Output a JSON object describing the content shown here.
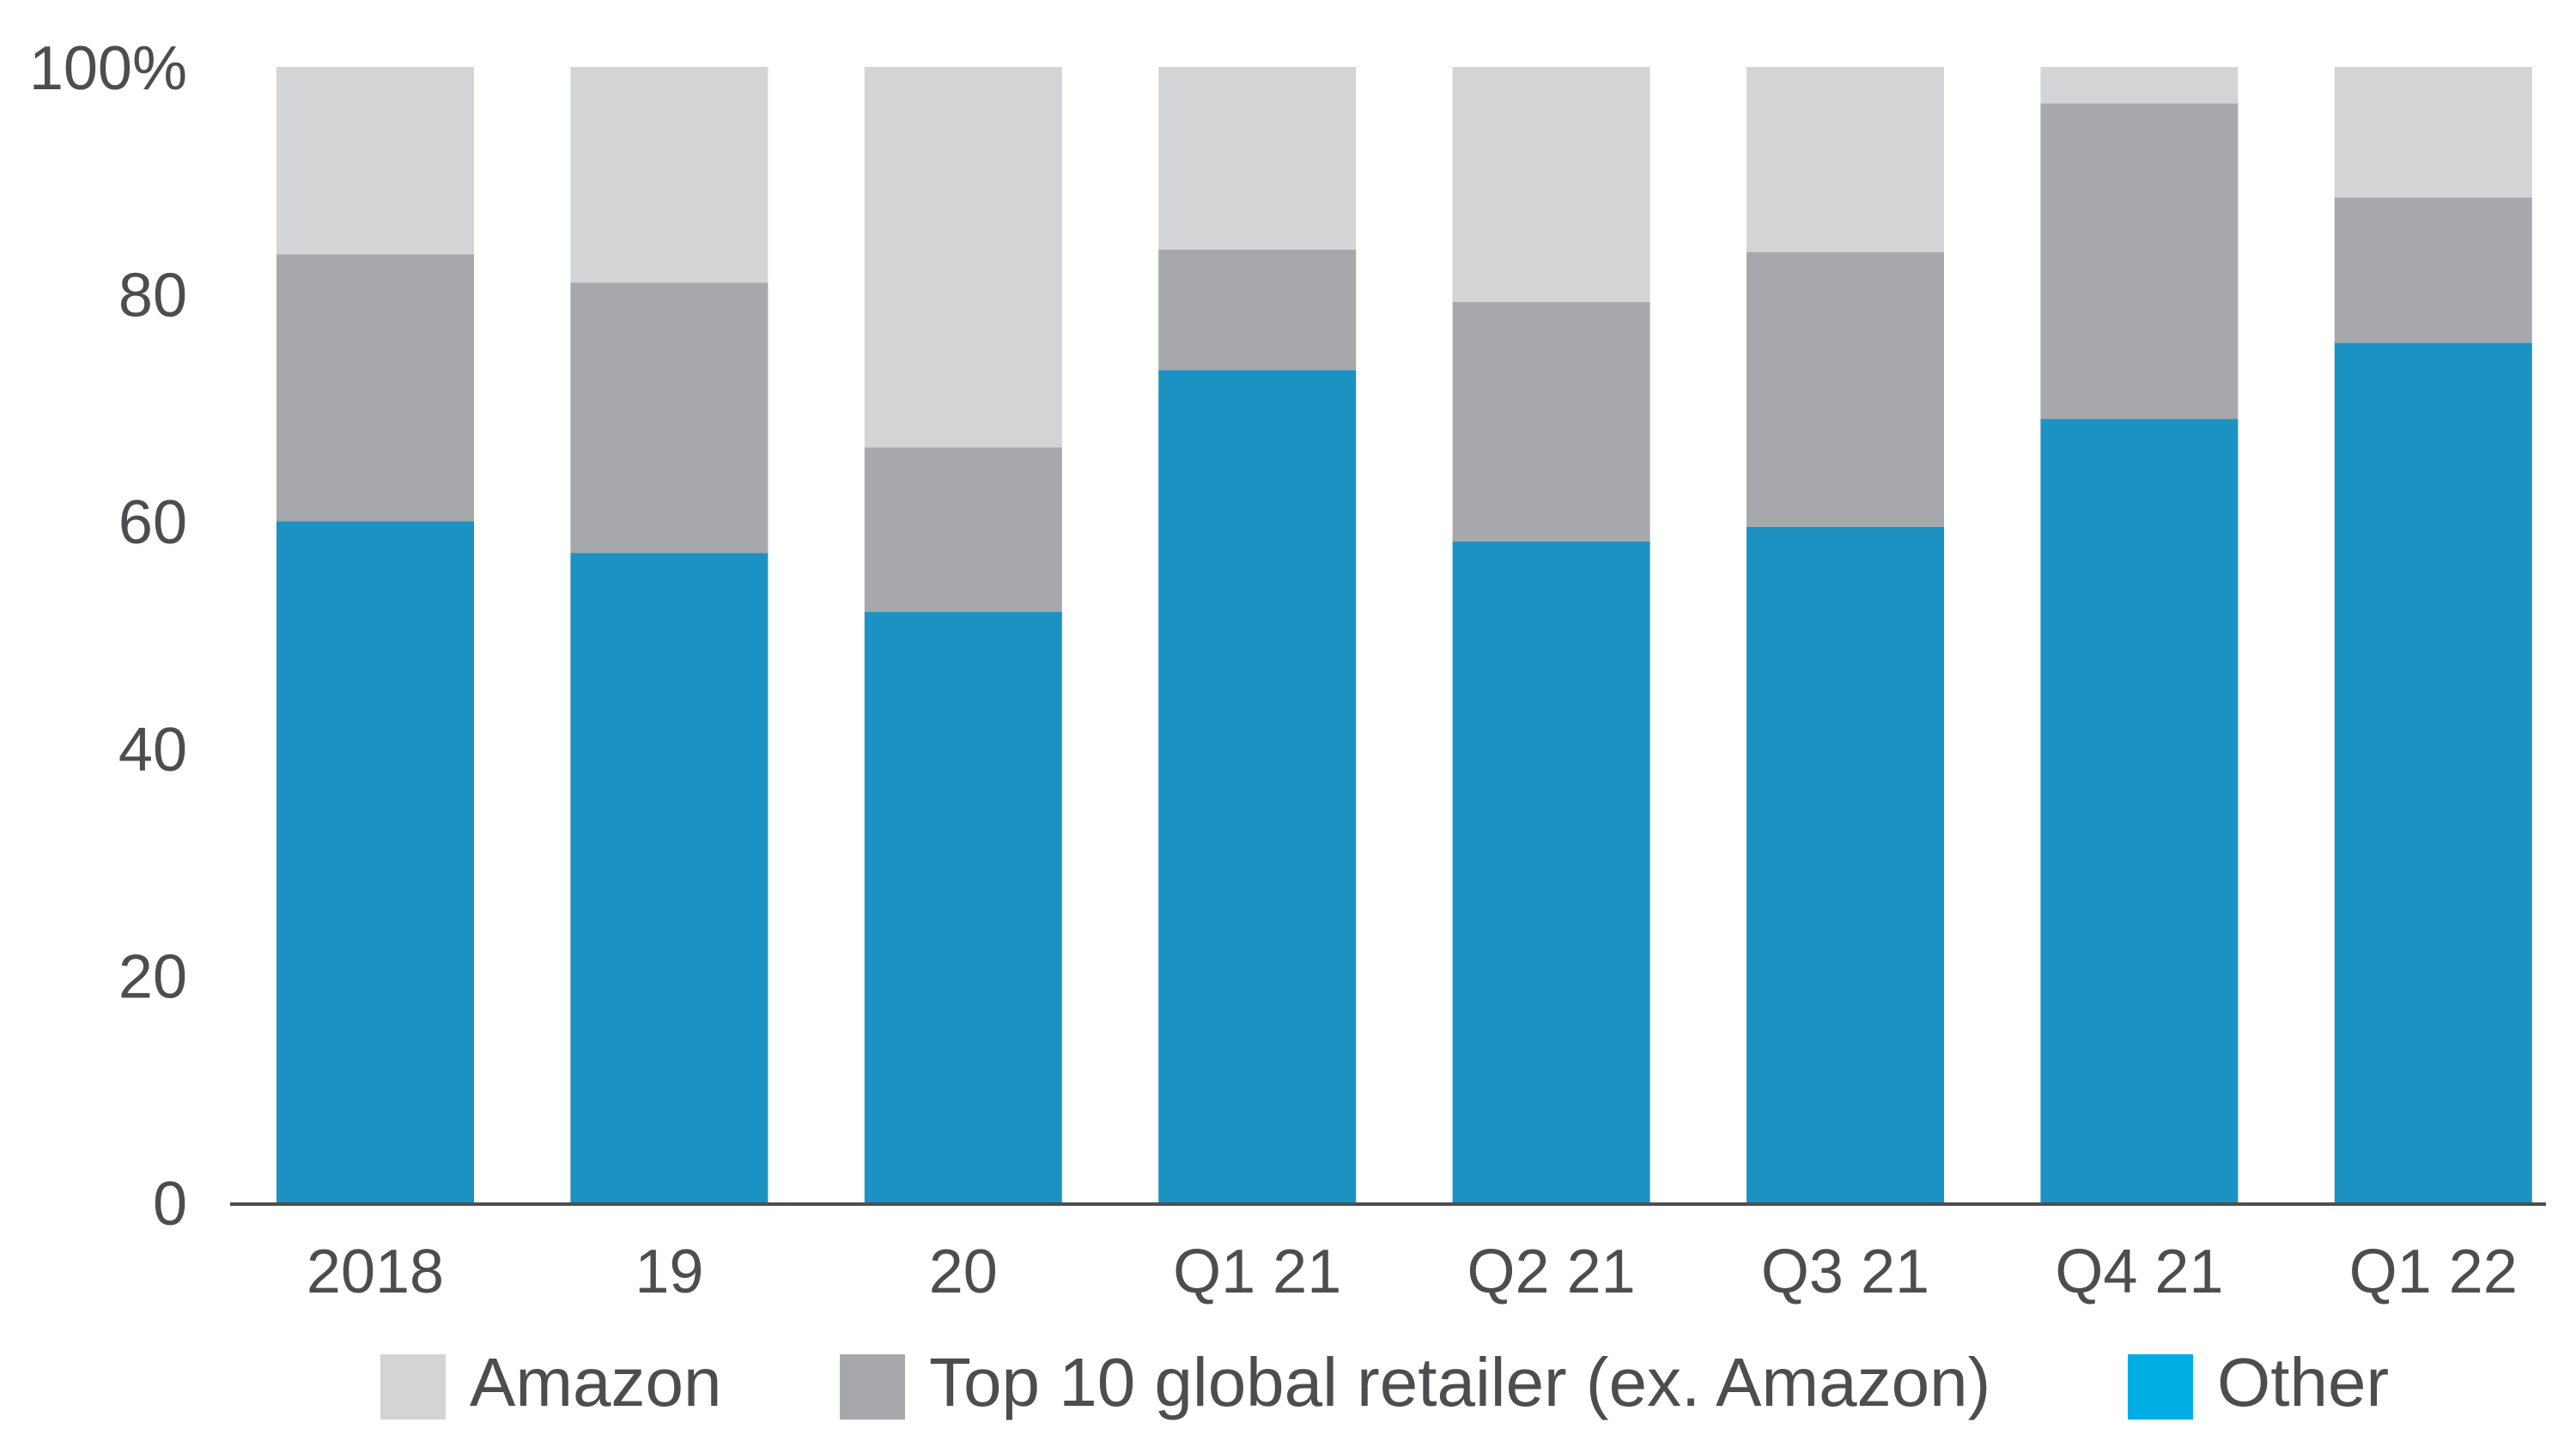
{
  "chart_data": {
    "type": "bar",
    "stacked": true,
    "categories": [
      "2018",
      "19",
      "20",
      "Q1 21",
      "Q2 21",
      "Q3 21",
      "Q4 21",
      "Q1 22"
    ],
    "series": [
      {
        "name": "Other",
        "color": "#1b92c1",
        "legend_color": "#00ade4",
        "values": [
          60.0,
          57.2,
          52.0,
          73.3,
          58.2,
          59.5,
          69.0,
          75.7
        ]
      },
      {
        "name": "Top 10 global retailer (ex. Amazon)",
        "color": "#a7a8ab",
        "legend_color": "#a7a8ab",
        "values": [
          23.5,
          23.8,
          14.5,
          10.6,
          21.1,
          24.2,
          27.8,
          12.8
        ]
      },
      {
        "name": "Amazon",
        "color": "#d3d4d6",
        "legend_color": "#d3d4d6",
        "values": [
          16.5,
          19.0,
          33.5,
          16.1,
          20.7,
          16.3,
          3.2,
          11.5
        ]
      }
    ],
    "legend_order": [
      "Amazon",
      "Top 10 global retailer (ex. Amazon)",
      "Other"
    ],
    "y_ticks": [
      "0",
      "20",
      "40",
      "60",
      "80",
      "100%"
    ],
    "y_tick_values": [
      0,
      20,
      40,
      60,
      80,
      100
    ],
    "ylim": [
      0,
      100
    ],
    "title": "",
    "xlabel": "",
    "ylabel": "",
    "grid": false,
    "legend_position": "bottom"
  }
}
